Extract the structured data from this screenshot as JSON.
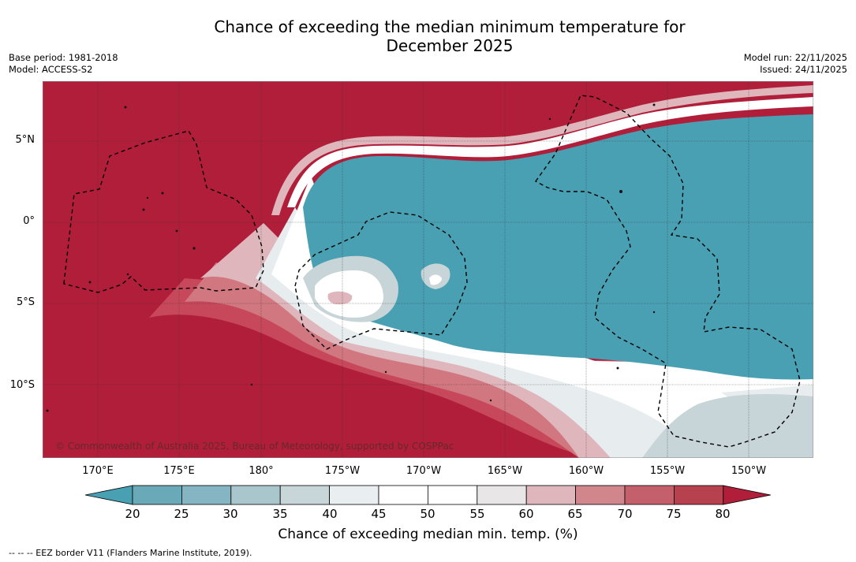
{
  "title": {
    "line1": "Chance of exceeding the median minimum temperature for",
    "line2": "December 2025"
  },
  "meta": {
    "base_period": "Base period: 1981-2018",
    "model": "Model: ACCESS-S2",
    "model_run": "Model run: 22/11/2025",
    "issued": "Issued: 24/11/2025"
  },
  "map": {
    "lat_labels": [
      "5°N",
      "0°",
      "5°S",
      "10°S"
    ],
    "lon_labels": [
      "170°E",
      "175°E",
      "180°",
      "175°W",
      "170°W",
      "165°W",
      "160°W",
      "155°W",
      "150°W"
    ],
    "credit": "© Commonwealth of Australia 2025, Bureau of Meteorology, supported by COSPPac",
    "colors": {
      "warm_max": "#b01e3a",
      "warm_75": "#c7485b",
      "warm_70": "#d0777f",
      "warm_65": "#deb6bc",
      "neutral": "#ffffff",
      "cool_40": "#e7ecef",
      "cool_35": "#c7d4d8",
      "cool_min": "#49a0b2"
    }
  },
  "colorbar": {
    "ticks": [
      "20",
      "25",
      "30",
      "35",
      "40",
      "45",
      "50",
      "55",
      "60",
      "65",
      "70",
      "75",
      "80"
    ],
    "colors": [
      "#49a0b2",
      "#6aaab8",
      "#85b5c2",
      "#a8c6cb",
      "#c8d6da",
      "#e9eef1",
      "#ffffff",
      "#ffffff",
      "#e9e6e8",
      "#deb6bc",
      "#d1868c",
      "#c4606c",
      "#b8414f",
      "#b01e3a"
    ],
    "label": "Chance of exceeding median min. temp. (%)"
  },
  "legend": {
    "eez": "--  --  -- EEZ border V11 (Flanders Marine Institute, 2019)."
  }
}
